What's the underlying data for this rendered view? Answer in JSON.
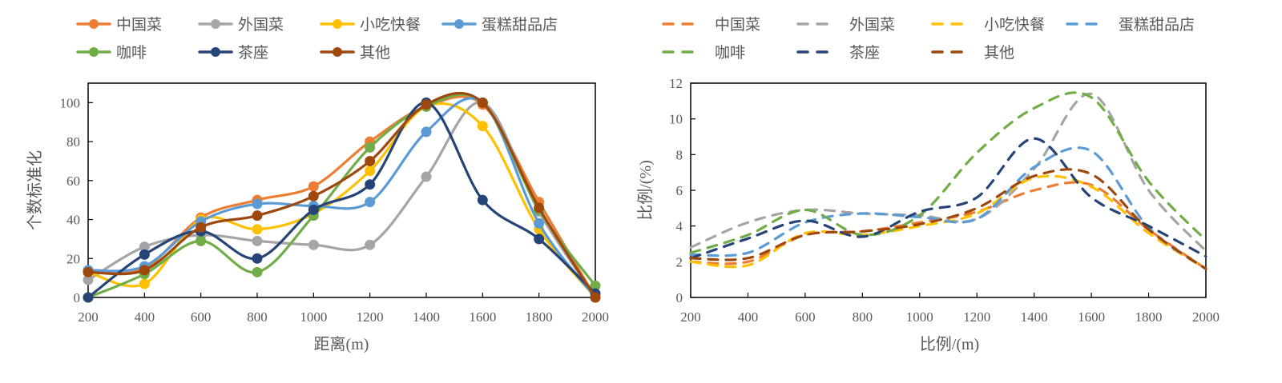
{
  "series_style": {
    "names": [
      "中国菜",
      "外国菜",
      "小吃快餐",
      "蛋糕甜品店",
      "咖啡",
      "茶座",
      "其他"
    ],
    "colors": [
      "#ED7D31",
      "#A5A5A5",
      "#FFC000",
      "#5B9BD5",
      "#70AD47",
      "#264478",
      "#9E480E"
    ]
  },
  "chart_data": [
    {
      "type": "line",
      "title": "",
      "xlabel": "距离(m)",
      "ylabel": "个数标准化",
      "x": [
        200,
        400,
        600,
        800,
        1000,
        1200,
        1400,
        1600,
        1800,
        2000
      ],
      "xlim": [
        200,
        2000
      ],
      "ylim": [
        0,
        110
      ],
      "xticks": [
        200,
        400,
        600,
        800,
        1000,
        1200,
        1400,
        1600,
        1800,
        2000
      ],
      "yticks": [
        0,
        20,
        40,
        60,
        80,
        100
      ],
      "grid": false,
      "legend": "top",
      "line_style": "solid-smooth-with-markers",
      "series": [
        {
          "name": "中国菜",
          "values": [
            13,
            15,
            41,
            50,
            57,
            80,
            98,
            99,
            49,
            0
          ]
        },
        {
          "name": "外国菜",
          "values": [
            9,
            26,
            32,
            29,
            27,
            27,
            62,
            100,
            44,
            0
          ]
        },
        {
          "name": "小吃快餐",
          "values": [
            13,
            7,
            40,
            35,
            43,
            65,
            98,
            88,
            35,
            0
          ]
        },
        {
          "name": "蛋糕甜品店",
          "values": [
            14,
            16,
            39,
            48,
            47,
            49,
            85,
            100,
            38,
            0
          ]
        },
        {
          "name": "咖啡",
          "values": [
            0,
            12,
            29,
            13,
            42,
            77,
            98,
            100,
            45,
            6
          ]
        },
        {
          "name": "茶座",
          "values": [
            0,
            22,
            34,
            20,
            45,
            58,
            100,
            50,
            30,
            2
          ]
        },
        {
          "name": "其他",
          "values": [
            13,
            14,
            36,
            42,
            52,
            70,
            99,
            100,
            46,
            0
          ]
        }
      ]
    },
    {
      "type": "line",
      "title": "",
      "xlabel": "比例/(m)",
      "ylabel": "比例/(%)",
      "x": [
        200,
        400,
        600,
        800,
        1000,
        1200,
        1400,
        1600,
        1800,
        2000
      ],
      "xlim": [
        200,
        2000
      ],
      "ylim": [
        0,
        12
      ],
      "xticks": [
        200,
        400,
        600,
        800,
        1000,
        1200,
        1400,
        1600,
        1800,
        2000
      ],
      "yticks": [
        0,
        2,
        4,
        6,
        8,
        10,
        12
      ],
      "grid": false,
      "legend": "top",
      "line_style": "dashed-smooth",
      "series": [
        {
          "name": "中国菜",
          "values": [
            2.0,
            2.0,
            3.5,
            3.7,
            4.2,
            4.8,
            6.0,
            6.3,
            3.8,
            1.6
          ]
        },
        {
          "name": "外国菜",
          "values": [
            2.8,
            4.2,
            4.9,
            4.7,
            4.6,
            4.4,
            7.2,
            11.4,
            6.0,
            2.6
          ]
        },
        {
          "name": "小吃快餐",
          "values": [
            2.0,
            1.8,
            3.6,
            3.5,
            4.0,
            4.7,
            6.7,
            6.2,
            3.6,
            1.6
          ]
        },
        {
          "name": "蛋糕甜品店",
          "values": [
            2.4,
            2.5,
            4.2,
            4.7,
            4.5,
            4.4,
            7.3,
            8.2,
            3.9,
            1.6
          ]
        },
        {
          "name": "咖啡",
          "values": [
            2.5,
            3.5,
            4.9,
            3.5,
            4.6,
            8.1,
            10.6,
            11.2,
            6.5,
            3.2
          ]
        },
        {
          "name": "茶座",
          "values": [
            2.2,
            3.3,
            4.3,
            3.4,
            4.8,
            5.6,
            8.9,
            5.6,
            4.0,
            2.3
          ]
        },
        {
          "name": "其他",
          "values": [
            2.2,
            2.2,
            3.5,
            3.7,
            4.1,
            5.0,
            6.8,
            6.9,
            3.8,
            1.6
          ]
        }
      ]
    }
  ]
}
